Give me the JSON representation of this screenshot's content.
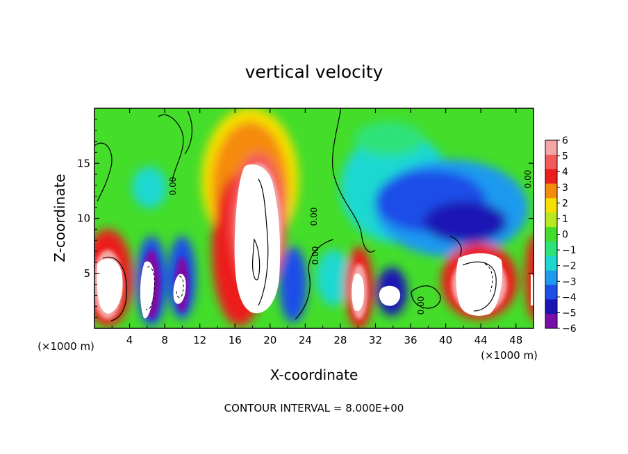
{
  "chart_data": {
    "type": "heatmap",
    "title": "vertical velocity",
    "xlabel": "X-coordinate",
    "ylabel": "Z-coordinate",
    "x_scale_label": "(×1000 m)",
    "y_scale_label": "(×1000 m)",
    "xlim": [
      0,
      50
    ],
    "ylim": [
      0,
      20
    ],
    "x_ticks": [
      4,
      8,
      12,
      16,
      20,
      24,
      28,
      32,
      36,
      40,
      44,
      48
    ],
    "y_ticks": [
      5,
      10,
      15
    ],
    "colorbar": {
      "labels": [
        "6",
        "5",
        "4",
        "3",
        "2",
        "1",
        "0",
        "−1",
        "−2",
        "−3",
        "−4",
        "−5",
        "−6"
      ],
      "colors": [
        "#f7a6a6",
        "#f45a5a",
        "#ec1e1e",
        "#f58a0c",
        "#f7e000",
        "#b6ea1e",
        "#44dd2a",
        "#2ee27a",
        "#1ed8d0",
        "#1e9af0",
        "#1e4ee8",
        "#1a14b4",
        "#7a0ea8"
      ],
      "clip_color": "#ffffff"
    },
    "contour_interval": "CONTOUR INTERVAL = 8.000E+00",
    "contour_labels": [
      "0.00",
      "0.00",
      "0.00",
      "0.00",
      "0.00"
    ],
    "features": [
      {
        "kind": "updraft-core",
        "x_range": [
          0,
          2
        ],
        "z_range": [
          0.5,
          9
        ]
      },
      {
        "kind": "downdraft",
        "x_range": [
          4.5,
          7.5
        ],
        "z_range": [
          0.3,
          8
        ]
      },
      {
        "kind": "downdraft",
        "x_range": [
          8.5,
          11
        ],
        "z_range": [
          0.3,
          8
        ]
      },
      {
        "kind": "updraft-core",
        "x_range": [
          16,
          21
        ],
        "z_range": [
          2,
          19
        ]
      },
      {
        "kind": "downdraft",
        "x_range": [
          21,
          24
        ],
        "z_range": [
          0.3,
          8
        ]
      },
      {
        "kind": "updraft-core",
        "x_range": [
          29,
          31
        ],
        "z_range": [
          0.5,
          7.5
        ]
      },
      {
        "kind": "downdraft",
        "x_range": [
          32,
          35
        ],
        "z_range": [
          1,
          5
        ]
      },
      {
        "kind": "downdraft-region",
        "x_range": [
          32,
          47
        ],
        "z_range": [
          6,
          17
        ]
      },
      {
        "kind": "updraft-core",
        "x_range": [
          40,
          46
        ],
        "z_range": [
          1,
          8
        ]
      },
      {
        "kind": "updraft-core",
        "x_range": [
          48.5,
          50
        ],
        "z_range": [
          0.5,
          9
        ]
      }
    ]
  }
}
